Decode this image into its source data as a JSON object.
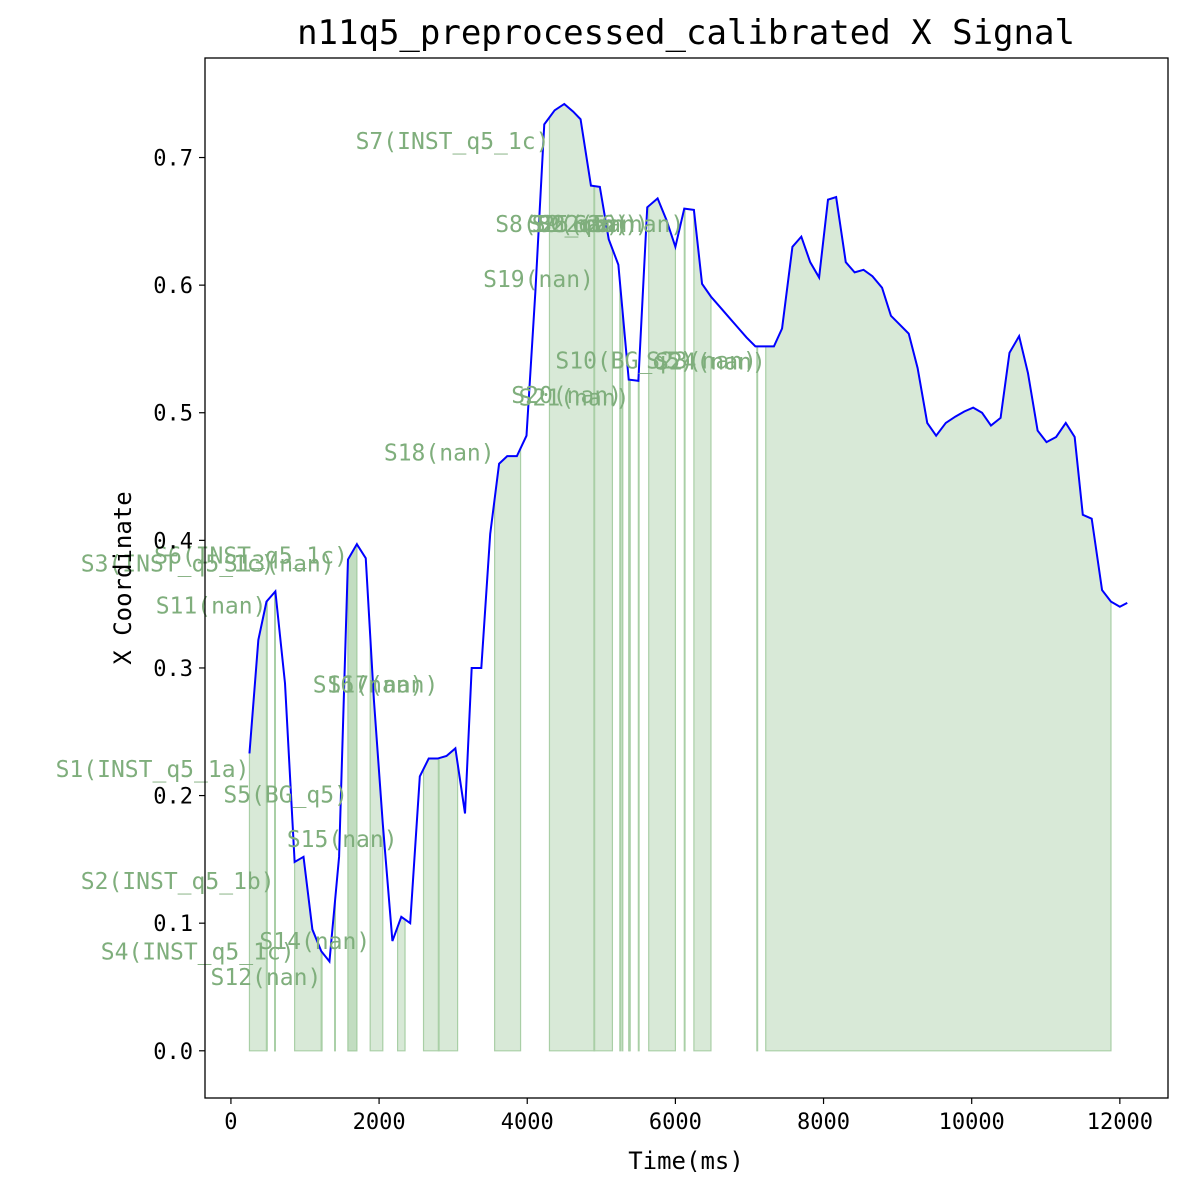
{
  "chart_data": {
    "type": "line",
    "title": "n11q5_preprocessed_calibrated X Signal",
    "xlabel": "Time(ms)",
    "ylabel": "X Coordinate",
    "xlim": [
      -350,
      12650
    ],
    "ylim": [
      -0.037,
      0.778
    ],
    "xticks": [
      0,
      2000,
      4000,
      6000,
      8000,
      10000,
      12000
    ],
    "xtick_labels": [
      "0",
      "2000",
      "4000",
      "6000",
      "8000",
      "10000",
      "12000"
    ],
    "yticks": [
      0.0,
      0.1,
      0.2,
      0.3,
      0.4,
      0.5,
      0.6,
      0.7
    ],
    "ytick_labels": [
      "0.0",
      "0.1",
      "0.2",
      "0.3",
      "0.4",
      "0.5",
      "0.6",
      "0.7"
    ],
    "grid": false,
    "line_color": "#0000ff",
    "fill_color": "#a9cfa6",
    "label_color": "#7fae7c",
    "series": [
      {
        "x": [
          250,
          370,
          480,
          600,
          730,
          860,
          980,
          1100,
          1220,
          1330,
          1460,
          1580,
          1700,
          1820,
          1930,
          2050,
          2180,
          2300,
          2420,
          2550,
          2670,
          2790,
          2910,
          3030,
          3160,
          3250,
          3380,
          3500,
          3620,
          3730,
          3860,
          3990,
          4110,
          4230,
          4370,
          4500,
          4620,
          4720,
          4860,
          4980,
          5100,
          5230,
          5370,
          5500,
          5620,
          5760,
          5880,
          6000,
          6120,
          6250,
          6360,
          6480,
          6600,
          6720,
          6840,
          6960,
          7080,
          7210,
          7330,
          7440,
          7580,
          7700,
          7820,
          7940,
          8060,
          8170,
          8300,
          8420,
          8540,
          8660,
          8790,
          8910,
          9030,
          9150,
          9270,
          9400,
          9520,
          9650,
          9780,
          9900,
          10020,
          10140,
          10260,
          10390,
          10510,
          10640,
          10760,
          10890,
          11010,
          11140,
          11270,
          11390,
          11500,
          11620,
          11760,
          11880,
          12000,
          12100
        ],
        "y": [
          0.233,
          0.322,
          0.352,
          0.36,
          0.288,
          0.148,
          0.152,
          0.095,
          0.078,
          0.07,
          0.152,
          0.385,
          0.397,
          0.386,
          0.275,
          0.178,
          0.086,
          0.105,
          0.1,
          0.215,
          0.229,
          0.229,
          0.231,
          0.237,
          0.186,
          0.3,
          0.3,
          0.405,
          0.46,
          0.466,
          0.466,
          0.482,
          0.595,
          0.726,
          0.737,
          0.742,
          0.736,
          0.73,
          0.678,
          0.677,
          0.636,
          0.616,
          0.526,
          0.525,
          0.661,
          0.668,
          0.651,
          0.63,
          0.66,
          0.659,
          0.601,
          0.591,
          0.583,
          0.575,
          0.567,
          0.559,
          0.552,
          0.552,
          0.552,
          0.566,
          0.63,
          0.638,
          0.618,
          0.606,
          0.667,
          0.669,
          0.618,
          0.61,
          0.612,
          0.607,
          0.598,
          0.576,
          0.569,
          0.562,
          0.535,
          0.492,
          0.482,
          0.492,
          0.497,
          0.501,
          0.504,
          0.5,
          0.49,
          0.496,
          0.547,
          0.56,
          0.531,
          0.486,
          0.477,
          0.481,
          0.492,
          0.481,
          0.42,
          0.417,
          0.361,
          0.352,
          0.348,
          0.351
        ]
      }
    ],
    "segments": [
      {
        "label": "S1(INST_q5_1a)",
        "start": 250,
        "end": 480,
        "label_x": 250,
        "label_y": 0.221
      },
      {
        "label": "S2(INST_q5_1b)",
        "start": 590,
        "end": 600,
        "label_x": 590,
        "label_y": 0.133
      },
      {
        "label": "S3(INST_q5_1c)",
        "start": 590,
        "end": 600,
        "label_x": 590,
        "label_y": 0.382
      },
      {
        "label": "S4(INST_q5_1c)",
        "start": 860,
        "end": 1220,
        "label_x": 860,
        "label_y": 0.078
      },
      {
        "label": "S5(BG_q5)",
        "start": 1580,
        "end": 1700,
        "label_x": 1580,
        "label_y": 0.201
      },
      {
        "label": "S6(INST_q5_1c)",
        "start": 1580,
        "end": 1700,
        "label_x": 1580,
        "label_y": 0.388
      },
      {
        "label": "S7(INST_q5_1c)",
        "start": 4300,
        "end": 5150,
        "label_x": 4300,
        "label_y": 0.713
      },
      {
        "label": "S8(BG_q5)",
        "start": 5250,
        "end": 5260,
        "label_x": 5250,
        "label_y": 0.648
      },
      {
        "label": "S9(nan)",
        "start": 5370,
        "end": 5380,
        "label_x": 5370,
        "label_y": 0.648
      },
      {
        "label": "S10(BG_q5)",
        "start": 6250,
        "end": 6480,
        "label_x": 6250,
        "label_y": 0.541
      },
      {
        "label": "S11(nan)",
        "start": 480,
        "end": 490,
        "label_x": 480,
        "label_y": 0.349
      },
      {
        "label": "S12(nan)",
        "start": 1220,
        "end": 1230,
        "label_x": 1220,
        "label_y": 0.058
      },
      {
        "label": "S13(nan)",
        "start": 1400,
        "end": 1410,
        "label_x": 1400,
        "label_y": 0.382
      },
      {
        "label": "S14(nan)",
        "start": 1880,
        "end": 2050,
        "label_x": 1880,
        "label_y": 0.086
      },
      {
        "label": "S15(nan)",
        "start": 2250,
        "end": 2350,
        "label_x": 2250,
        "label_y": 0.166
      },
      {
        "label": "S16(nan)",
        "start": 2600,
        "end": 3060,
        "label_x": 2600,
        "label_y": 0.287
      },
      {
        "label": "S17(nan)",
        "start": 2800,
        "end": 2810,
        "label_x": 2800,
        "label_y": 0.287
      },
      {
        "label": "S18(nan)",
        "start": 3560,
        "end": 3910,
        "label_x": 3560,
        "label_y": 0.469
      },
      {
        "label": "S19(nan)",
        "start": 4900,
        "end": 4910,
        "label_x": 4900,
        "label_y": 0.605
      },
      {
        "label": "S20(nan)",
        "start": 5280,
        "end": 5290,
        "label_x": 5280,
        "label_y": 0.514
      },
      {
        "label": "S21(nan)",
        "start": 5380,
        "end": 5390,
        "label_x": 5380,
        "label_y": 0.512
      },
      {
        "label": "S22(nan)",
        "start": 5640,
        "end": 6000,
        "label_x": 5640,
        "label_y": 0.648
      },
      {
        "label": "S23(nan)",
        "start": 7100,
        "end": 7110,
        "label_x": 7100,
        "label_y": 0.541
      },
      {
        "label": "S24(nan)",
        "start": 7220,
        "end": 11880,
        "label_x": 7220,
        "label_y": 0.54
      },
      {
        "label": "S25(nan)",
        "start": 5500,
        "end": 5510,
        "label_x": 5500,
        "label_y": 0.648
      },
      {
        "label": "S26(nan)",
        "start": 6120,
        "end": 6130,
        "label_x": 6120,
        "label_y": 0.648
      }
    ]
  }
}
